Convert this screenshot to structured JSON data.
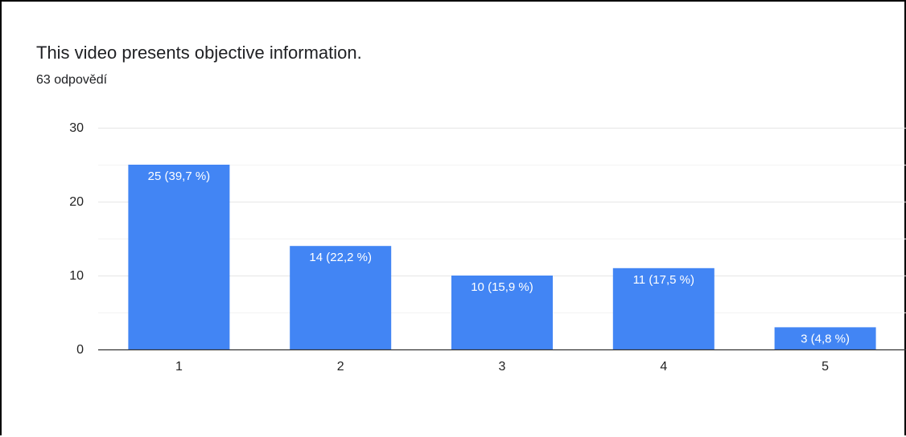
{
  "question": {
    "title": "This video presents objective information.",
    "responses": "63 odpovědí"
  },
  "chart_data": {
    "type": "bar",
    "title": "This video presents objective information.",
    "subtitle": "63 odpovědí",
    "categories": [
      "1",
      "2",
      "3",
      "4",
      "5"
    ],
    "values": [
      25,
      14,
      10,
      11,
      3
    ],
    "data_labels": [
      "25 (39,7 %)",
      "14 (22,2 %)",
      "10 (15,9 %)",
      "11 (17,5 %)",
      "3 (4,8 %)"
    ],
    "ylim": [
      0,
      30
    ],
    "yticks": [
      0,
      10,
      20,
      30
    ],
    "xlabel": "",
    "ylabel": "",
    "grid": true,
    "legend": "none",
    "bar_color": "#4285f4"
  }
}
